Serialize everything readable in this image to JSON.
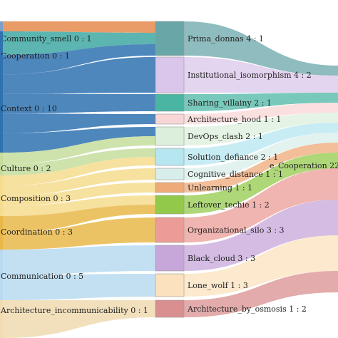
{
  "diagram": {
    "type": "sankey",
    "left_nodes": [
      {
        "id": "community_smell",
        "label": "Community_smell 0 : 1",
        "color": "#7d9fc8"
      },
      {
        "id": "cooperation",
        "label": "Cooperation 0 : 1",
        "color": "#2f72b0"
      },
      {
        "id": "context",
        "label": "Context 0 : 10",
        "color": "#2f72b0"
      },
      {
        "id": "culture",
        "label": "Culture 0 : 2",
        "color": "#c6dd9e"
      },
      {
        "id": "composition",
        "label": "Composition 0 : 3",
        "color": "#f6dc8e"
      },
      {
        "id": "coordination",
        "label": "Coordination 0 : 3",
        "color": "#e9b849"
      },
      {
        "id": "communication",
        "label": "Communication 0 : 5",
        "color": "#b9daf0"
      },
      {
        "id": "architecture_incommunicability",
        "label": "Architecture_incommunicability 0 : 1",
        "color": "#f0dbb2"
      }
    ],
    "middle_nodes": [
      {
        "id": "prima_donnas",
        "label": "Prima_donnas 4 : 1",
        "color": "#69a6a8"
      },
      {
        "id": "institutional_isomorphism",
        "label": "Institutional_isomorphism 4 : 2",
        "color": "#d9c6ea"
      },
      {
        "id": "sharing_villainy",
        "label": "Sharing_villainy 2 : 1",
        "color": "#4bb5a4"
      },
      {
        "id": "architecture_hood",
        "label": "Architecture_hood 1 : 1",
        "color": "#f9d6d6"
      },
      {
        "id": "devops_clash",
        "label": "DevOps_clash 2 : 1",
        "color": "#dcefdc"
      },
      {
        "id": "solution_defiance",
        "label": "Solution_defiance 2 : 1",
        "color": "#b6e6f0"
      },
      {
        "id": "cognitive_distance",
        "label": "Cognitive_distance 1 : 1",
        "color": "#d8eeea"
      },
      {
        "id": "unlearning",
        "label": "Unlearning 1 : 1",
        "color": "#eeaa78"
      },
      {
        "id": "leftover_techie",
        "label": "Leftover_techie 1 : 2",
        "color": "#93c94b"
      },
      {
        "id": "organizational_silo",
        "label": "Organizational_silo 3 : 3",
        "color": "#eb9c96"
      },
      {
        "id": "black_cloud",
        "label": "Black_cloud 3 : 3",
        "color": "#c7a6d9"
      },
      {
        "id": "lone_wolf",
        "label": "Lone_wolf 1 : 3",
        "color": "#fbe1bd"
      },
      {
        "id": "architecture_by_osmosis",
        "label": "Architecture_by_osmosis 1 : 2",
        "color": "#d98f8f"
      }
    ],
    "right_node": {
      "id": "e_cooperation",
      "label": "e_Cooperation 22",
      "color": "#93c94b"
    },
    "links_in": [
      {
        "from": "community_smell",
        "to": "prima_donnas",
        "color": "#e58a4e"
      },
      {
        "from": "cooperation",
        "to": "prima_donnas",
        "color": "#3fa8a2"
      },
      {
        "from": "context",
        "to": "prima_donnas",
        "color": "#2f72b0"
      },
      {
        "from": "context",
        "to": "institutional_isomorphism",
        "color": "#2f72b0"
      },
      {
        "from": "context",
        "to": "sharing_villainy",
        "color": "#2f72b0"
      },
      {
        "from": "context",
        "to": "architecture_hood",
        "color": "#2f72b0"
      },
      {
        "from": "context",
        "to": "devops_clash",
        "color": "#2f72b0"
      },
      {
        "from": "culture",
        "to": "devops_clash",
        "color": "#c6dd9e"
      },
      {
        "from": "culture",
        "to": "solution_defiance",
        "color": "#c6dd9e"
      },
      {
        "from": "composition",
        "to": "solution_defiance",
        "color": "#f6dc8e"
      },
      {
        "from": "composition",
        "to": "cognitive_distance",
        "color": "#f6dc8e"
      },
      {
        "from": "composition",
        "to": "unlearning",
        "color": "#f6dc8e"
      },
      {
        "from": "composition",
        "to": "leftover_techie",
        "color": "#f6dc8e"
      },
      {
        "from": "coordination",
        "to": "leftover_techie",
        "color": "#e9b849"
      },
      {
        "from": "coordination",
        "to": "organizational_silo",
        "color": "#e9b849"
      },
      {
        "from": "communication",
        "to": "black_cloud",
        "color": "#b9daf0"
      },
      {
        "from": "communication",
        "to": "lone_wolf",
        "color": "#b9daf0"
      },
      {
        "from": "architecture_incommunicability",
        "to": "architecture_by_osmosis",
        "color": "#f0dbb2"
      }
    ]
  }
}
